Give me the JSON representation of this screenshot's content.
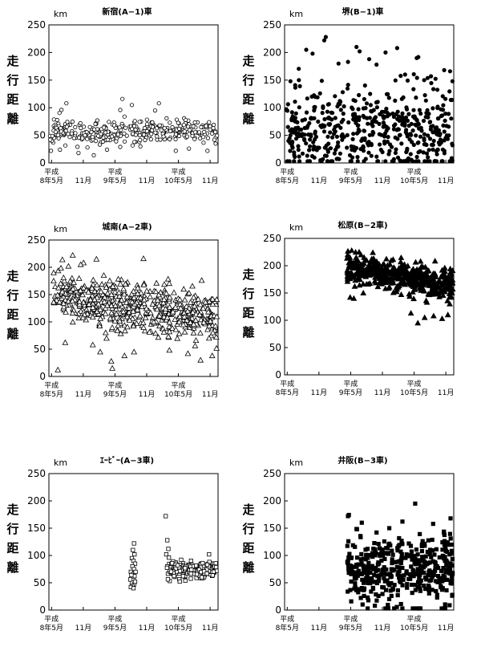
{
  "chart_data": [
    {
      "type": "scatter",
      "title": "新宿(A−1)車",
      "unit": "km",
      "ylabel": [
        "走",
        "行",
        "距",
        "離"
      ],
      "ylim": [
        0,
        250
      ],
      "yticks": [
        "0",
        "50",
        "100",
        "150",
        "200",
        "250"
      ],
      "x_ticks": [
        {
          "line1": "平成",
          "line2": "8年5月",
          "x": 0
        },
        {
          "line1": "",
          "line2": "11月",
          "x": 6
        },
        {
          "line1": "平成",
          "line2": "9年5月",
          "x": 12
        },
        {
          "line1": "",
          "line2": "11月",
          "x": 18
        },
        {
          "line1": "平成",
          "line2": "10年5月",
          "x": 24
        },
        {
          "line1": "",
          "line2": "11月",
          "x": 30
        }
      ],
      "xlim": [
        -0.5,
        31.5
      ],
      "marker": "circle-open",
      "series": [
        {
          "gen": {
            "seed": 11,
            "count": 330,
            "x_start": -0.3,
            "x_end": 31.3,
            "base": 57,
            "spread": 11,
            "trend": 0
          },
          "points": [
            [
              -0.1,
              22
            ],
            [
              2.8,
              108
            ],
            [
              5.1,
              18
            ],
            [
              6.8,
              28
            ],
            [
              13.4,
              116
            ],
            [
              15.2,
              105
            ],
            [
              20.3,
              108
            ],
            [
              19.6,
              95
            ],
            [
              13.0,
              96
            ],
            [
              8.0,
              14
            ],
            [
              23.5,
              22
            ],
            [
              26.0,
              26
            ],
            [
              1.6,
              24
            ],
            [
              10.5,
              24
            ],
            [
              29.5,
              22
            ],
            [
              16.8,
              30
            ],
            [
              13.8,
              84
            ],
            [
              30.8,
              42
            ]
          ]
        }
      ]
    },
    {
      "type": "scatter",
      "title": "堺(B−1)車",
      "unit": "km",
      "ylabel": [
        "走",
        "行",
        "距",
        "離"
      ],
      "ylim": [
        0,
        250
      ],
      "yticks": [
        "0",
        "50",
        "100",
        "150",
        "200",
        "250"
      ],
      "x_ticks": [
        {
          "line1": "平成",
          "line2": "8年5月",
          "x": 0
        },
        {
          "line1": "",
          "line2": "11月",
          "x": 6
        },
        {
          "line1": "平成",
          "line2": "9年5月",
          "x": 12
        },
        {
          "line1": "",
          "line2": "11月",
          "x": 18
        },
        {
          "line1": "平成",
          "line2": "10年5月",
          "x": 24
        },
        {
          "line1": "",
          "line2": "11月",
          "x": 30
        }
      ],
      "xlim": [
        -0.5,
        31.5
      ],
      "marker": "circle-filled",
      "series": [
        {
          "gen": {
            "seed": 23,
            "count": 520,
            "x_start": -0.3,
            "x_end": 31.3,
            "base": 62,
            "spread": 38,
            "trend": 0
          },
          "points": [
            [
              7.0,
              222
            ],
            [
              7.3,
              228
            ],
            [
              4.8,
              198
            ],
            [
              3.6,
              205
            ],
            [
              13.1,
              210
            ],
            [
              13.7,
              202
            ],
            [
              15.5,
              188
            ],
            [
              20.8,
              208
            ],
            [
              24.5,
              190
            ],
            [
              29.7,
              168
            ],
            [
              30.8,
              166
            ],
            [
              27.2,
              157
            ],
            [
              2.2,
              150
            ],
            [
              9.7,
              180
            ],
            [
              16.9,
              178
            ],
            [
              18.6,
              200
            ],
            [
              11.5,
              183
            ],
            [
              25.9,
              150
            ],
            [
              0.6,
              148
            ],
            [
              22.3,
              160
            ]
          ]
        }
      ]
    },
    {
      "type": "scatter",
      "title": "城南(A−2車)",
      "unit": "km",
      "ylabel": [
        "走",
        "行",
        "距",
        "離"
      ],
      "ylim": [
        0,
        250
      ],
      "yticks": [
        "0",
        "50",
        "100",
        "150",
        "200",
        "250"
      ],
      "x_ticks": [
        {
          "line1": "平成",
          "line2": "8年5月",
          "x": 0
        },
        {
          "line1": "",
          "line2": "11月",
          "x": 6
        },
        {
          "line1": "平成",
          "line2": "9年5月",
          "x": 12
        },
        {
          "line1": "",
          "line2": "11月",
          "x": 18
        },
        {
          "line1": "平成",
          "line2": "10年5月",
          "x": 24
        },
        {
          "line1": "",
          "line2": "11月",
          "x": 30
        }
      ],
      "xlim": [
        -0.5,
        31.5
      ],
      "marker": "triangle-open",
      "series": [
        {
          "gen": {
            "seed": 37,
            "count": 560,
            "x_start": 0.3,
            "x_end": 31.3,
            "base": 150,
            "spread": 22,
            "trend": -1.5
          },
          "points": [
            [
              4.0,
              222
            ],
            [
              0.4,
              190
            ],
            [
              3.2,
              202
            ],
            [
              8.5,
              215
            ],
            [
              17.4,
              216
            ],
            [
              28.4,
              176
            ],
            [
              1.2,
              12
            ],
            [
              11.5,
              15
            ],
            [
              11.3,
              28
            ],
            [
              13.8,
              38
            ],
            [
              28.2,
              30
            ],
            [
              30.4,
              38
            ],
            [
              5.5,
              205
            ],
            [
              2.6,
              62
            ],
            [
              7.8,
              58
            ],
            [
              15.6,
              45
            ],
            [
              9.2,
              45
            ],
            [
              22.3,
              48
            ],
            [
              25.8,
              42
            ],
            [
              10.4,
              70
            ]
          ]
        }
      ]
    },
    {
      "type": "scatter",
      "title": "松原(B−2車)",
      "unit": "km",
      "ylabel": [
        "走",
        "行",
        "距",
        "離"
      ],
      "ylim": [
        0,
        250
      ],
      "yticks": [
        "0",
        "50",
        "100",
        "150",
        "200",
        "250"
      ],
      "x_ticks": [
        {
          "line1": "平成",
          "line2": "8年5月",
          "x": 0
        },
        {
          "line1": "",
          "line2": "11月",
          "x": 6
        },
        {
          "line1": "平成",
          "line2": "9年5月",
          "x": 12
        },
        {
          "line1": "",
          "line2": "11月",
          "x": 18
        },
        {
          "line1": "平成",
          "line2": "10年5月",
          "x": 24
        },
        {
          "line1": "",
          "line2": "11月",
          "x": 30
        }
      ],
      "xlim": [
        -0.5,
        31.5
      ],
      "marker": "triangle-filled",
      "series": [
        {
          "gen": {
            "seed": 53,
            "count": 470,
            "x_start": 11.2,
            "x_end": 31.3,
            "base": 197,
            "spread": 14,
            "trend": -1.6
          },
          "points": [
            [
              12.2,
              228
            ],
            [
              13.6,
              225
            ],
            [
              16.2,
              224
            ],
            [
              12.6,
              140
            ],
            [
              14.4,
              150
            ],
            [
              11.9,
              142
            ],
            [
              23.4,
              113
            ],
            [
              24.7,
              95
            ],
            [
              26.0,
              105
            ],
            [
              27.7,
              108
            ],
            [
              30.4,
              110
            ],
            [
              29.3,
              103
            ],
            [
              30.9,
              188
            ],
            [
              29.1,
              180
            ],
            [
              27.0,
              168
            ],
            [
              18.6,
              158
            ],
            [
              20.6,
              185
            ]
          ]
        }
      ]
    },
    {
      "type": "scatter",
      "title": "ｴｰﾋﾞｰ(A−3車)",
      "unit": "km",
      "ylabel": [
        "走",
        "行",
        "距",
        "離"
      ],
      "ylim": [
        0,
        250
      ],
      "yticks": [
        "0",
        "50",
        "100",
        "150",
        "200",
        "250"
      ],
      "x_ticks": [
        {
          "line1": "平成",
          "line2": "8年5月",
          "x": 0
        },
        {
          "line1": "",
          "line2": "11月",
          "x": 6
        },
        {
          "line1": "平成",
          "line2": "9年5月",
          "x": 12
        },
        {
          "line1": "",
          "line2": "11月",
          "x": 18
        },
        {
          "line1": "平成",
          "line2": "10年5月",
          "x": 24
        },
        {
          "line1": "",
          "line2": "11月",
          "x": 30
        }
      ],
      "xlim": [
        -0.5,
        31.5
      ],
      "marker": "square-open",
      "series": [
        {
          "gen": {
            "seed": 71,
            "count": 200,
            "x_start": 21.8,
            "x_end": 31.3,
            "base": 74,
            "spread": 8,
            "trend": 0
          },
          "points": [
            [
              15.6,
              122
            ],
            [
              15.4,
              110
            ],
            [
              15.7,
              102
            ],
            [
              15.2,
              95
            ],
            [
              15.5,
              90
            ],
            [
              15.8,
              85
            ],
            [
              15.3,
              80
            ],
            [
              15.6,
              75
            ],
            [
              15.0,
              70
            ],
            [
              15.4,
              66
            ],
            [
              15.7,
              62
            ],
            [
              15.1,
              58
            ],
            [
              15.5,
              55
            ],
            [
              15.2,
              50
            ],
            [
              15.6,
              47
            ],
            [
              15.3,
              44
            ],
            [
              15.0,
              42
            ],
            [
              15.5,
              40
            ],
            [
              15.8,
              52
            ],
            [
              14.9,
              56
            ],
            [
              15.9,
              70
            ],
            [
              15.1,
              64
            ],
            [
              21.6,
              172
            ],
            [
              21.9,
              128
            ],
            [
              22.1,
              112
            ],
            [
              21.7,
              102
            ],
            [
              22.2,
              96
            ],
            [
              29.8,
              102
            ]
          ]
        }
      ]
    },
    {
      "type": "scatter",
      "title": "井阪(B−3車)",
      "unit": "km",
      "ylabel": [
        "走",
        "行",
        "距",
        "離"
      ],
      "ylim": [
        0,
        250
      ],
      "yticks": [
        "0",
        "50",
        "100",
        "150",
        "200",
        "250"
      ],
      "x_ticks": [
        {
          "line1": "平成",
          "line2": "8年5月",
          "x": 0
        },
        {
          "line1": "",
          "line2": "11月",
          "x": 6
        },
        {
          "line1": "平成",
          "line2": "9年5月",
          "x": 12
        },
        {
          "line1": "",
          "line2": "11月",
          "x": 18
        },
        {
          "line1": "平成",
          "line2": "10年5月",
          "x": 24
        },
        {
          "line1": "",
          "line2": "11月",
          "x": 30
        }
      ],
      "xlim": [
        -0.5,
        31.5
      ],
      "marker": "square-filled",
      "series": [
        {
          "gen": {
            "seed": 97,
            "count": 430,
            "x_start": 11.3,
            "x_end": 31.3,
            "base": 70,
            "spread": 34,
            "trend": 0
          },
          "points": [
            [
              11.5,
              172
            ],
            [
              14.1,
              160
            ],
            [
              24.2,
              195
            ],
            [
              30.9,
              168
            ],
            [
              21.8,
              162
            ],
            [
              27.6,
              158
            ],
            [
              19.3,
              150
            ],
            [
              13.2,
              148
            ],
            [
              16.9,
              142
            ]
          ]
        }
      ]
    }
  ]
}
